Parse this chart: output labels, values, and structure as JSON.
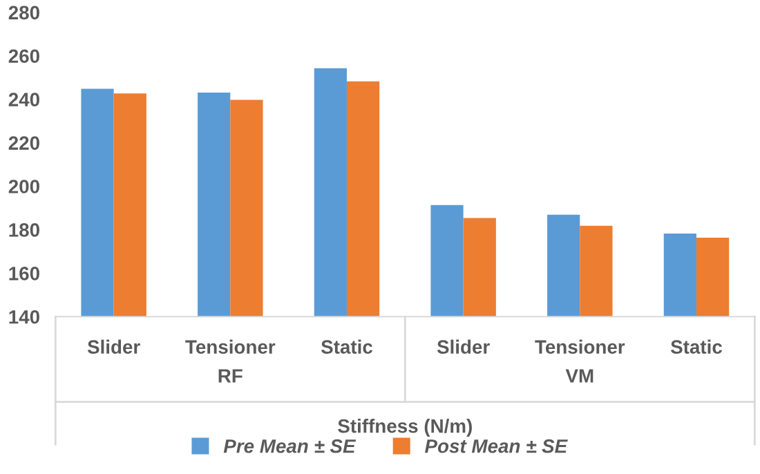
{
  "chart_data": {
    "type": "bar",
    "xlabel": "Stiffness (N/m)",
    "categories": [
      "Slider",
      "Tensioner",
      "Static",
      "Slider",
      "Tensioner",
      "Static"
    ],
    "annotations": [
      "RF",
      "VM"
    ],
    "series": [
      {
        "name": "Pre Mean ± SE",
        "color": "#5b9bd5",
        "values": [
          244.8,
          243.1,
          254.3,
          191.3,
          186.9,
          178.2
        ]
      },
      {
        "name": "Post Mean ± SE",
        "color": "#ed7d31",
        "values": [
          242.7,
          239.7,
          248.2,
          185.4,
          181.8,
          176.3
        ]
      }
    ],
    "ylim": [
      140,
      280
    ],
    "yticks": [
      140,
      160,
      180,
      200,
      220,
      240,
      260,
      280
    ],
    "grid": false,
    "legend": "bottom"
  }
}
